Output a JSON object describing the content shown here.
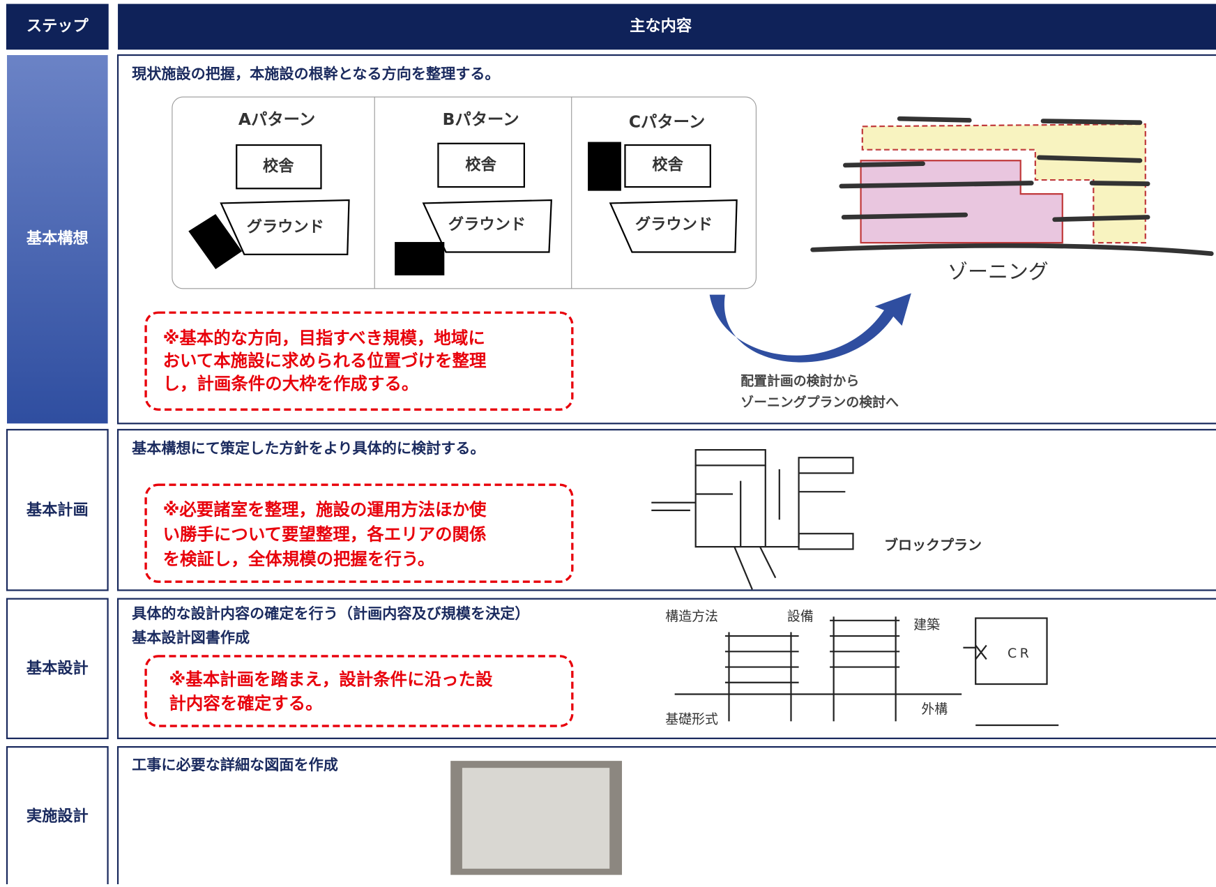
{
  "header": {
    "step": "ステップ",
    "content": "主な内容"
  },
  "rows": [
    {
      "step": "基本構想",
      "lead": [
        "現状施設の把握，本施設の根幹となる方向を整理する。"
      ],
      "patterns": [
        {
          "title": "Aパターン",
          "building": "校舎",
          "ground": "グラウンド"
        },
        {
          "title": "Bパターン",
          "building": "校舎",
          "ground": "グラウンド"
        },
        {
          "title": "Cパターン",
          "building": "校舎",
          "ground": "グラウンド"
        }
      ],
      "zoning": "ゾーニング",
      "arrow_caption": [
        "配置計画の検討から",
        "ゾーニングプランの検討へ"
      ],
      "note": [
        "※基本的な方向，目指すべき規模，地域に",
        "おいて本施設に求められる位置づけを整理",
        "し，計画条件の大枠を作成する。"
      ]
    },
    {
      "step": "基本計画",
      "lead": [
        "基本構想にて策定した方針をより具体的に検討する。"
      ],
      "note": [
        "※必要諸室を整理，施設の運用方法ほか使",
        "い勝手について要望整理，各エリアの関係",
        "を検証し，全体規模の把握を行う。"
      ],
      "figure_label": "ブロックプラン"
    },
    {
      "step": "基本設計",
      "lead": [
        "具体的な設計内容の確定を行う（計画内容及び規模を決定）",
        "基本設計図書作成"
      ],
      "note": [
        "※基本計画を踏まえ，設計条件に沿った設",
        "計内容を確定する。"
      ],
      "figure_labels": {
        "structure": "構造方法",
        "equipment": "設備",
        "architecture": "建築",
        "foundation": "基礎形式",
        "exterior": "外構",
        "room": "CR"
      }
    },
    {
      "step": "実施設計",
      "lead": [
        "工事に必要な詳細な図面を作成"
      ]
    }
  ]
}
